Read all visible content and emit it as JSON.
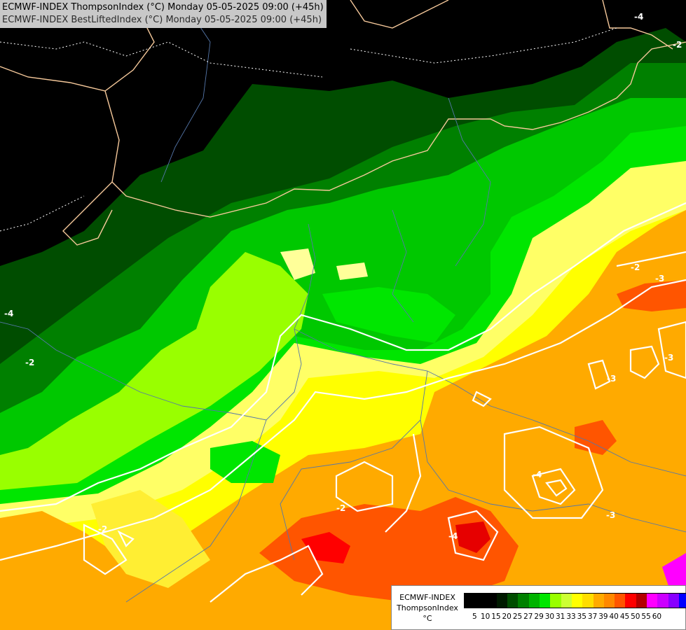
{
  "header": {
    "line1": "ECMWF-INDEX ThompsonIndex (°C) Monday 05-05-2025 09:00 (+45h)",
    "line2": "ECMWF-INDEX BestLiftedIndex (°C) Monday 05-05-2025 09:00 (+45h)"
  },
  "legend": {
    "model": "ECMWF-INDEX",
    "parameter": "ThompsonIndex",
    "unit": "°C",
    "ticks": [
      "5",
      "10",
      "15",
      "20",
      "25",
      "27",
      "29",
      "30",
      "31",
      "33",
      "35",
      "37",
      "39",
      "40",
      "45",
      "50",
      "55",
      "60"
    ],
    "colors": [
      "#000000",
      "#000000",
      "#000000",
      "#001a00",
      "#004d00",
      "#008000",
      "#00b300",
      "#00e600",
      "#99ff00",
      "#ccff33",
      "#ffff00",
      "#ffdd00",
      "#ffaa00",
      "#ff8800",
      "#ff5500",
      "#ff0000",
      "#b30000",
      "#ff00ff",
      "#cc00ff",
      "#8800ff",
      "#0000ff"
    ]
  },
  "contour_labels": [
    "-4",
    "-2",
    "-2",
    "-2",
    "-2",
    "-2",
    "-3",
    "-3",
    "-3",
    "-3",
    "-4",
    "-4",
    "-4"
  ]
}
